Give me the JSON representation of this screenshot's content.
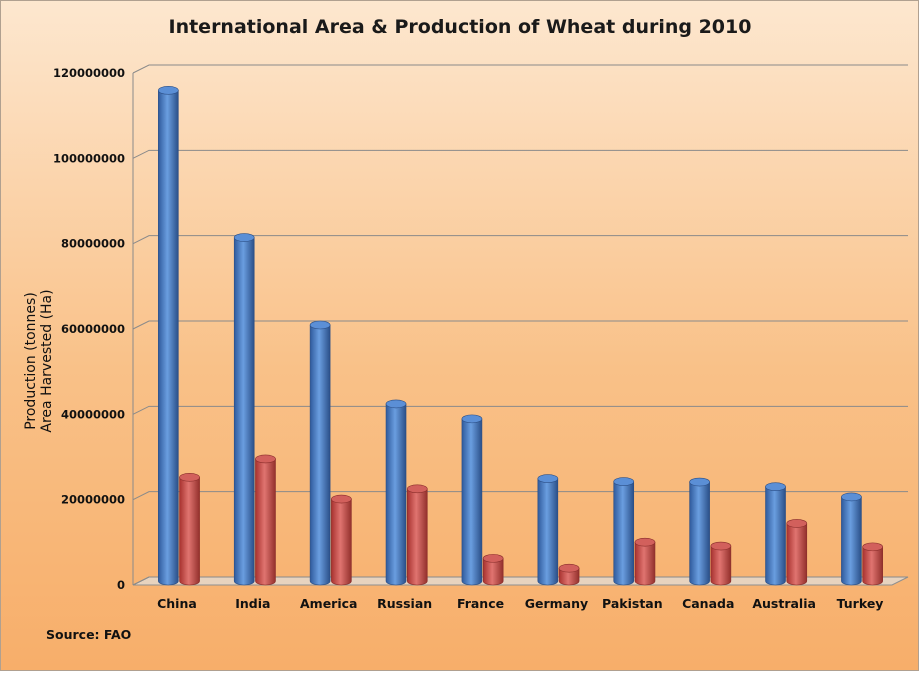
{
  "chart_data": {
    "type": "bar",
    "title": "International Area & Production of Wheat during 2010",
    "ylabel_lines": [
      "Production (tonnes)",
      "Area Harvested (Ha)"
    ],
    "xlabel": "",
    "source": "Source: FAO",
    "categories": [
      "China",
      "India",
      "America",
      "Russian",
      "France",
      "Germany",
      "Pakistan",
      "Canada",
      "Australia",
      "Turkey"
    ],
    "series": [
      {
        "color": "#4f81bd",
        "values": [
          115000000,
          80500000,
          60000000,
          41500000,
          38000000,
          24000000,
          23300000,
          23200000,
          22100000,
          19700000
        ]
      },
      {
        "color": "#c0504d",
        "values": [
          24300000,
          28600000,
          19200000,
          21600000,
          5300000,
          3000000,
          9100000,
          8200000,
          13500000,
          8000000
        ]
      }
    ],
    "y_ticks": [
      "0",
      "20000000",
      "40000000",
      "60000000",
      "80000000",
      "100000000",
      "120000000"
    ],
    "ylim": [
      0,
      120000000
    ],
    "grid": true,
    "legend": "none"
  }
}
